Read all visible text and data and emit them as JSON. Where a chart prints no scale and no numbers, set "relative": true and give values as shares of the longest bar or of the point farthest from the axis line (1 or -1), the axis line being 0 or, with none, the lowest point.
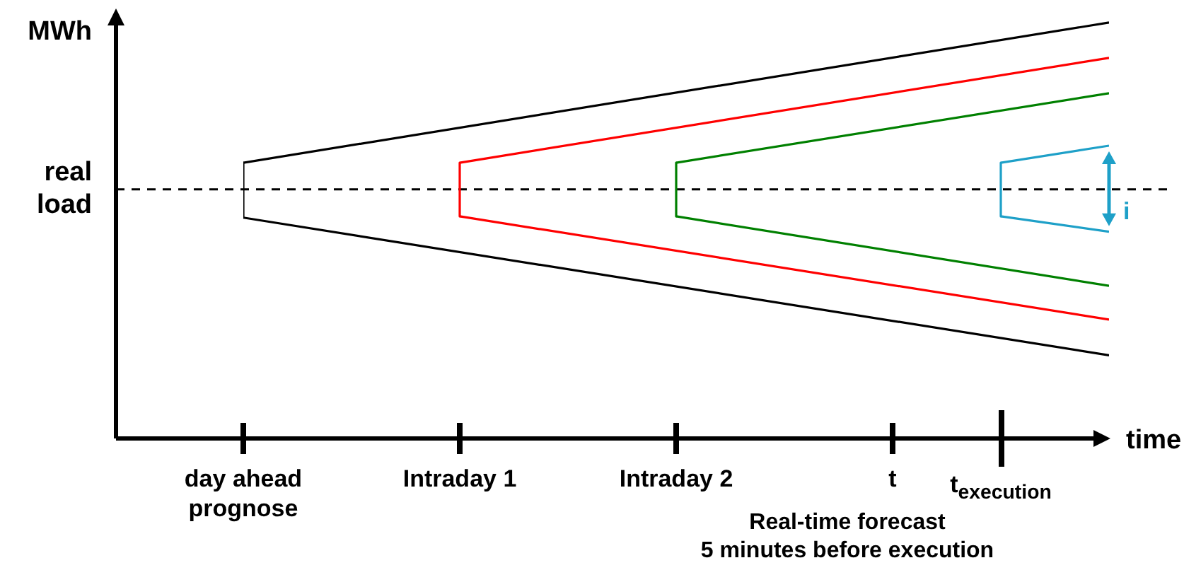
{
  "chart_data": {
    "type": "line",
    "relative": true,
    "ylabel": "MWh",
    "xlabel": "time",
    "categories": [
      "day ahead\nprognose",
      null,
      "Intraday 1",
      null,
      "Intraday 2",
      null,
      "t",
      "t$_{execution}$",
      null
    ],
    "series": [
      {
        "color": "#000000",
        "values": [
          0.663,
          null,
          null,
          null,
          null,
          null,
          null,
          null,
          1.0
        ]
      },
      {
        "color": "#000000",
        "values": [
          0.531,
          null,
          null,
          null,
          null,
          null,
          null,
          null,
          0.2
        ]
      },
      {
        "color": "#ff0000",
        "values": [
          null,
          null,
          0.663,
          null,
          null,
          null,
          null,
          null,
          0.915
        ]
      },
      {
        "color": "#ff0000",
        "values": [
          null,
          null,
          0.534,
          null,
          null,
          null,
          null,
          null,
          0.286
        ]
      },
      {
        "color": "#008000",
        "values": [
          null,
          null,
          null,
          null,
          0.663,
          null,
          null,
          null,
          0.83
        ]
      },
      {
        "color": "#008000",
        "values": [
          null,
          null,
          null,
          null,
          0.534,
          null,
          null,
          null,
          0.367
        ]
      },
      {
        "color": "#1ea0c8",
        "values": [
          null,
          null,
          null,
          null,
          null,
          null,
          null,
          0.663,
          0.704
        ]
      },
      {
        "color": "#1ea0c8",
        "values": [
          null,
          null,
          null,
          null,
          null,
          null,
          null,
          0.534,
          0.497
        ]
      },
      {
        "type": "line",
        "color": "#000000",
        "x": [
          "day ahead\nprognose",
          "day ahead\nprognose"
        ],
        "values": [
          0.663,
          0.531
        ]
      },
      {
        "type": "line",
        "color": "#ff0000",
        "x": [
          "Intraday 1",
          "Intraday 1"
        ],
        "values": [
          0.663,
          0.534
        ]
      },
      {
        "type": "line",
        "color": "#008000",
        "x": [
          "Intraday 2",
          "Intraday 2"
        ],
        "values": [
          0.663,
          0.534
        ]
      },
      {
        "type": "line",
        "color": "#1ea0c8",
        "x": [
          "t$_{execution}$",
          "t$_{execution}$"
        ],
        "values": [
          0.663,
          0.534
        ]
      }
    ],
    "ref_lines": [
      {
        "axis": "y",
        "value": 0.599,
        "label": "real load",
        "color": "#000000",
        "line_style": "dashed"
      }
    ],
    "annotations": [
      "Real-time forecast\n5 minutes before execution",
      "i"
    ],
    "marker": "none",
    "line_style": "solid",
    "legend": false
  }
}
